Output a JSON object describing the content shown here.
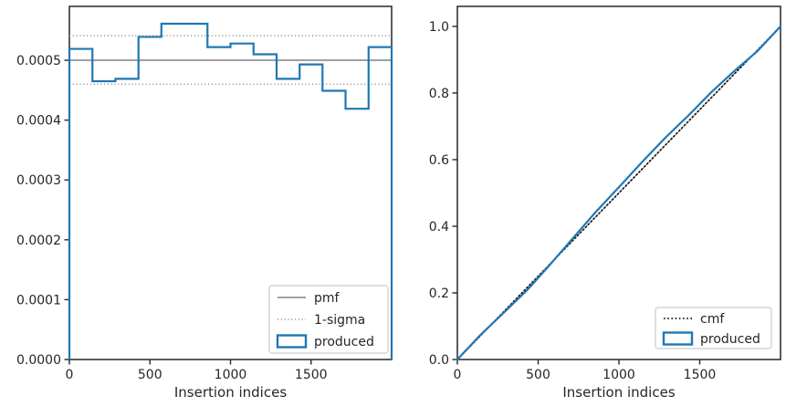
{
  "figure": {
    "colors": {
      "background": "#ffffff",
      "spine": "#262626",
      "text": "#262626",
      "produced_blue": "#1f77b4",
      "pmf_gray": "#808080",
      "sigma_gray": "#9e9e9e",
      "cmf_black": "#1a1a1a",
      "legend_border": "#cccccc"
    }
  },
  "chart_data": [
    {
      "type": "step",
      "title": "",
      "xlabel": "Insertion indices",
      "ylabel": "",
      "xlim": [
        0,
        2000
      ],
      "ylim": [
        0,
        0.00059
      ],
      "grid": false,
      "xtick_values": [
        0,
        500,
        1000,
        1500
      ],
      "xtick_labels": [
        "0",
        "500",
        "1000",
        "1500"
      ],
      "ytick_values": [
        0,
        0.0001,
        0.0002,
        0.0003,
        0.0004,
        0.0005
      ],
      "ytick_labels": [
        "0.0000",
        "0.0001",
        "0.0002",
        "0.0003",
        "0.0004",
        "0.0005"
      ],
      "bin_edges": [
        0,
        143,
        286,
        429,
        571,
        714,
        857,
        1000,
        1143,
        1286,
        1429,
        1571,
        1714,
        1857,
        2000
      ],
      "bin_values": [
        0.000519,
        0.000465,
        0.000469,
        0.000539,
        0.000561,
        0.000561,
        0.000522,
        0.000528,
        0.00051,
        0.000469,
        0.000493,
        0.000449,
        0.000419,
        0.000522
      ],
      "pmf_value": 0.0005,
      "sigma_upper": 0.000541,
      "sigma_lower": 0.00046,
      "legend_position": "lower right",
      "legend": [
        {
          "label": "pmf",
          "style": "line-gray"
        },
        {
          "label": "1-sigma",
          "style": "dotted-gray"
        },
        {
          "label": "produced",
          "style": "rect-blue"
        }
      ]
    },
    {
      "type": "line",
      "title": "",
      "xlabel": "Insertion indices",
      "ylabel": "",
      "xlim": [
        0,
        2000
      ],
      "ylim": [
        0,
        1.06
      ],
      "grid": false,
      "xtick_values": [
        0,
        500,
        1000,
        1500
      ],
      "xtick_labels": [
        "0",
        "500",
        "1000",
        "1500"
      ],
      "ytick_values": [
        0,
        0.2,
        0.4,
        0.6,
        0.8,
        1.0
      ],
      "ytick_labels": [
        "0.0",
        "0.2",
        "0.4",
        "0.6",
        "0.8",
        "1.0"
      ],
      "series": [
        {
          "name": "cmf",
          "style": "dotted-black",
          "x": [
            0,
            2000
          ],
          "y": [
            0,
            1.0
          ]
        },
        {
          "name": "produced",
          "style": "line-blue",
          "x": [
            0,
            143,
            286,
            429,
            571,
            714,
            857,
            1000,
            1143,
            1286,
            1429,
            1571,
            1714,
            1857,
            2000
          ],
          "y": [
            0,
            0.0739,
            0.14,
            0.2068,
            0.2835,
            0.3634,
            0.4432,
            0.5175,
            0.5926,
            0.6652,
            0.732,
            0.8021,
            0.8661,
            0.9257,
            1.0
          ]
        }
      ],
      "legend_position": "lower right",
      "legend": [
        {
          "label": "cmf",
          "style": "dotted-black"
        },
        {
          "label": "produced",
          "style": "rect-blue"
        }
      ]
    }
  ]
}
